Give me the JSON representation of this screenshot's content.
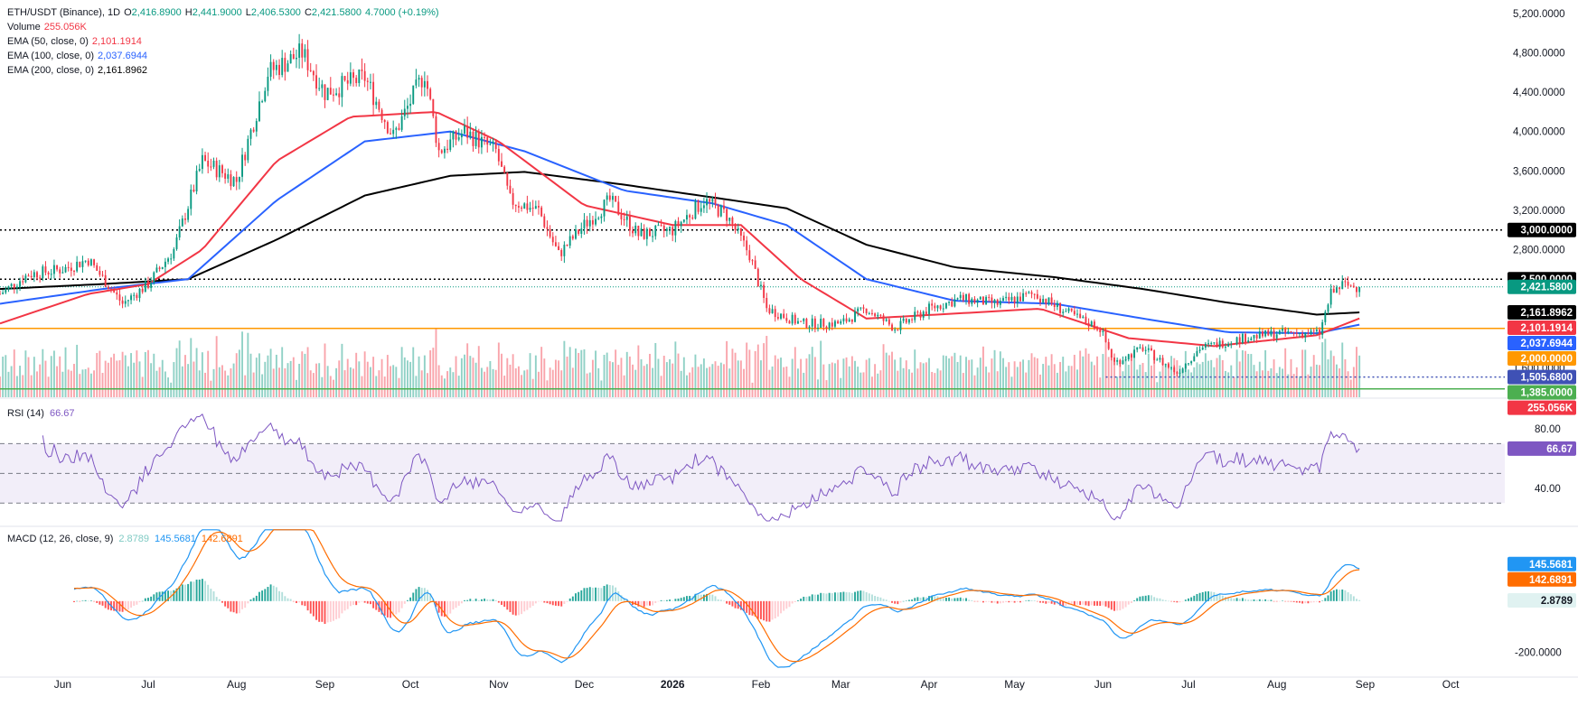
{
  "header": {
    "symbol": "ETH/USDT (Binance), 1D",
    "ohlc": [
      {
        "k": "O",
        "v": "2,416.8900"
      },
      {
        "k": "H",
        "v": "2,441.9000"
      },
      {
        "k": "L",
        "v": "2,406.5300"
      },
      {
        "k": "C",
        "v": "2,421.5800"
      }
    ],
    "change": "4.7000 (+0.19%)"
  },
  "legend": [
    {
      "name": "Volume",
      "value": "255.056K",
      "color": "#f23645"
    },
    {
      "name": "EMA (50, close, 0)",
      "value": "2,101.1914",
      "color": "#f23645"
    },
    {
      "name": "EMA (100, close, 0)",
      "value": "2,037.6944",
      "color": "#2962ff"
    },
    {
      "name": "EMA (200, close, 0)",
      "value": "2,161.8962",
      "color": "#000000"
    }
  ],
  "rsi_legend": {
    "name": "RSI (14)",
    "value": "66.67",
    "color": "#7e57c2"
  },
  "macd_legend": {
    "name": "MACD (12, 26, close, 9)",
    "values": [
      {
        "v": "2.8789",
        "color": "#80cbc4"
      },
      {
        "v": "145.5681",
        "color": "#2196f3"
      },
      {
        "v": "142.6891",
        "color": "#ff6d00"
      }
    ]
  },
  "colors": {
    "up": "#089981",
    "down": "#f23645",
    "ema50": "#f23645",
    "ema100": "#2962ff",
    "ema200": "#000000",
    "orange": "#ff9800",
    "green": "#4caf50",
    "rsi": "#7e57c2",
    "macd": "#2196f3",
    "signal": "#ff6d00"
  },
  "chart_data": [
    {
      "type": "candlestick",
      "title": "ETH/USDT (Binance), 1D",
      "ylim": [
        1300,
        5300
      ],
      "x_start": "2025-05-10",
      "x_end": "2026-10-20",
      "y_ticks": [
        "5,200.0000",
        "4,800.0000",
        "4,400.0000",
        "4,000.0000",
        "3,600.0000",
        "3,200.0000",
        "2,800.0000",
        "2,400.0000",
        "2,000.0000",
        "1,600.0000"
      ],
      "y_tick_values": [
        5200,
        4800,
        4400,
        4000,
        3600,
        3200,
        2800,
        2400,
        2000,
        1600
      ],
      "x_ticks": [
        {
          "label": "Jun",
          "date": "2025-06-01"
        },
        {
          "label": "Jul",
          "date": "2025-07-01"
        },
        {
          "label": "Aug",
          "date": "2025-08-01"
        },
        {
          "label": "Sep",
          "date": "2025-09-01"
        },
        {
          "label": "Oct",
          "date": "2025-10-01"
        },
        {
          "label": "Nov",
          "date": "2025-11-01"
        },
        {
          "label": "Dec",
          "date": "2025-12-01"
        },
        {
          "label": "2026",
          "date": "2026-01-01"
        },
        {
          "label": "Feb",
          "date": "2026-02-01"
        },
        {
          "label": "Mar",
          "date": "2026-03-01"
        },
        {
          "label": "Apr",
          "date": "2026-04-01"
        },
        {
          "label": "May",
          "date": "2026-05-01"
        },
        {
          "label": "Jun",
          "date": "2026-06-01"
        },
        {
          "label": "Jul",
          "date": "2026-07-01"
        },
        {
          "label": "Aug",
          "date": "2026-08-01"
        },
        {
          "label": "Sep",
          "date": "2026-09-01"
        },
        {
          "label": "Oct",
          "date": "2026-10-01"
        }
      ],
      "price_path": [
        [
          "2025-05-10",
          2350
        ],
        [
          "2025-05-20",
          2550
        ],
        [
          "2025-06-01",
          2600
        ],
        [
          "2025-06-10",
          2700
        ],
        [
          "2025-06-22",
          2250
        ],
        [
          "2025-07-01",
          2450
        ],
        [
          "2025-07-10",
          2800
        ],
        [
          "2025-07-20",
          3700
        ],
        [
          "2025-08-01",
          3500
        ],
        [
          "2025-08-12",
          4600
        ],
        [
          "2025-08-24",
          4800
        ],
        [
          "2025-09-01",
          4400
        ],
        [
          "2025-09-15",
          4550
        ],
        [
          "2025-09-25",
          3950
        ],
        [
          "2025-10-06",
          4600
        ],
        [
          "2025-10-11",
          3800
        ],
        [
          "2025-10-20",
          4000
        ],
        [
          "2025-10-31",
          3800
        ],
        [
          "2025-11-05",
          3300
        ],
        [
          "2025-11-15",
          3200
        ],
        [
          "2025-11-22",
          2750
        ],
        [
          "2025-12-01",
          3050
        ],
        [
          "2025-12-10",
          3300
        ],
        [
          "2025-12-20",
          2950
        ],
        [
          "2026-01-01",
          3000
        ],
        [
          "2026-01-12",
          3300
        ],
        [
          "2026-01-20",
          3150
        ],
        [
          "2026-01-28",
          2750
        ],
        [
          "2026-02-03",
          2200
        ],
        [
          "2026-02-15",
          2050
        ],
        [
          "2026-03-01",
          2050
        ],
        [
          "2026-03-10",
          2200
        ],
        [
          "2026-03-20",
          2000
        ],
        [
          "2026-04-01",
          2200
        ],
        [
          "2026-04-12",
          2300
        ],
        [
          "2026-04-25",
          2250
        ],
        [
          "2026-05-08",
          2350
        ],
        [
          "2026-05-20",
          2150
        ],
        [
          "2026-05-31",
          2000
        ],
        [
          "2026-06-05",
          1650
        ],
        [
          "2026-06-15",
          1800
        ],
        [
          "2026-06-27",
          1550
        ],
        [
          "2026-07-05",
          1800
        ],
        [
          "2026-07-20",
          1900
        ],
        [
          "2026-08-01",
          1950
        ],
        [
          "2026-08-16",
          1950
        ],
        [
          "2026-08-20",
          2350
        ],
        [
          "2026-08-24",
          2440
        ],
        [
          "2026-08-30",
          2421.58
        ]
      ],
      "ema50_path": [
        [
          "2025-05-10",
          2050
        ],
        [
          "2025-06-10",
          2350
        ],
        [
          "2025-07-01",
          2450
        ],
        [
          "2025-07-20",
          2800
        ],
        [
          "2025-08-15",
          3700
        ],
        [
          "2025-09-10",
          4150
        ],
        [
          "2025-10-10",
          4200
        ],
        [
          "2025-11-01",
          3900
        ],
        [
          "2025-12-01",
          3250
        ],
        [
          "2026-01-01",
          3050
        ],
        [
          "2026-01-25",
          3050
        ],
        [
          "2026-02-15",
          2500
        ],
        [
          "2026-03-10",
          2100
        ],
        [
          "2026-04-10",
          2150
        ],
        [
          "2026-05-10",
          2200
        ],
        [
          "2026-06-10",
          1900
        ],
        [
          "2026-07-10",
          1820
        ],
        [
          "2026-08-15",
          1930
        ],
        [
          "2026-08-30",
          2101.19
        ]
      ],
      "ema100_path": [
        [
          "2025-05-10",
          2250
        ],
        [
          "2025-06-15",
          2400
        ],
        [
          "2025-07-15",
          2500
        ],
        [
          "2025-08-15",
          3300
        ],
        [
          "2025-09-15",
          3900
        ],
        [
          "2025-10-15",
          4000
        ],
        [
          "2025-11-10",
          3800
        ],
        [
          "2025-12-15",
          3400
        ],
        [
          "2026-01-15",
          3270
        ],
        [
          "2026-02-10",
          3050
        ],
        [
          "2026-03-10",
          2500
        ],
        [
          "2026-04-10",
          2280
        ],
        [
          "2026-05-15",
          2250
        ],
        [
          "2026-06-15",
          2100
        ],
        [
          "2026-07-15",
          1960
        ],
        [
          "2026-08-15",
          1950
        ],
        [
          "2026-08-30",
          2037.69
        ]
      ],
      "ema200_path": [
        [
          "2025-05-10",
          2400
        ],
        [
          "2025-06-15",
          2450
        ],
        [
          "2025-07-15",
          2500
        ],
        [
          "2025-08-15",
          2900
        ],
        [
          "2025-09-15",
          3350
        ],
        [
          "2025-10-15",
          3550
        ],
        [
          "2025-11-10",
          3590
        ],
        [
          "2025-12-15",
          3460
        ],
        [
          "2026-01-20",
          3310
        ],
        [
          "2026-02-10",
          3220
        ],
        [
          "2026-03-10",
          2850
        ],
        [
          "2026-04-10",
          2620
        ],
        [
          "2026-05-15",
          2520
        ],
        [
          "2026-06-15",
          2400
        ],
        [
          "2026-07-15",
          2260
        ],
        [
          "2026-08-15",
          2140
        ],
        [
          "2026-08-30",
          2161.9
        ]
      ],
      "horizontal_levels": [
        {
          "value": 3000,
          "label": "3,000.0000",
          "style": "dotted",
          "color": "#000000",
          "label_bg": "#000000"
        },
        {
          "value": 2500,
          "label": "2,500.0000",
          "style": "dotted",
          "color": "#000000",
          "label_bg": "#000000"
        },
        {
          "value": 2000,
          "label": "2,000.0000",
          "style": "solid",
          "color": "#ff9800",
          "label_bg": "#ff9800"
        },
        {
          "value": 1505.68,
          "label": "1,505.6800",
          "style": "dotted",
          "color": "#3f51b5",
          "label_bg": "#3f51b5",
          "from": "2026-06-02"
        },
        {
          "value": 1385,
          "label": "1,385.0000",
          "style": "solid",
          "color": "#4caf50",
          "label_bg": "#4caf50"
        }
      ],
      "last_price": {
        "value": 2421.58,
        "label": "2,421.5800"
      },
      "price_labels": [
        {
          "value": 2421.58,
          "label": "2,421.5800",
          "bg": "#089981"
        },
        {
          "value": 2161.8962,
          "label": "2,161.8962",
          "bg": "#000000"
        },
        {
          "value": 2101.1914,
          "label": "2,101.1914",
          "bg": "#f23645"
        },
        {
          "value": 2037.6944,
          "label": "2,037.6944",
          "bg": "#2962ff"
        },
        {
          "value": 2000,
          "label": "2,000.0000",
          "bg": "#ff9800"
        },
        {
          "value": 1505.68,
          "label": "1,505.6800",
          "bg": "#3f51b5"
        },
        {
          "value": 1385,
          "label": "1,385.0000",
          "bg": "#4caf50"
        },
        {
          "value": 0,
          "label": "255.056K",
          "bg": "#f23645"
        }
      ]
    },
    {
      "type": "line",
      "title": "RSI (14)",
      "ylim": [
        15,
        100
      ],
      "y_ticks": [
        "80.00",
        "40.00"
      ],
      "y_tick_values": [
        80,
        40
      ],
      "bands": [
        70,
        50,
        30
      ],
      "current": {
        "value": 66.67,
        "label": "66.67"
      }
    },
    {
      "type": "line",
      "title": "MACD (12, 26, close, 9)",
      "ylim": [
        -270,
        290
      ],
      "y_ticks": [
        "-200.0000"
      ],
      "y_tick_values": [
        -200
      ],
      "labels": [
        {
          "value": 145.5681,
          "label": "145.5681",
          "bg": "#2196f3"
        },
        {
          "value": 142.6891,
          "label": "142.6891",
          "bg": "#ff6d00"
        },
        {
          "value": 2.8789,
          "label": "2.8789",
          "bg": "#e0f2f1",
          "fg": "#131722"
        }
      ]
    }
  ]
}
